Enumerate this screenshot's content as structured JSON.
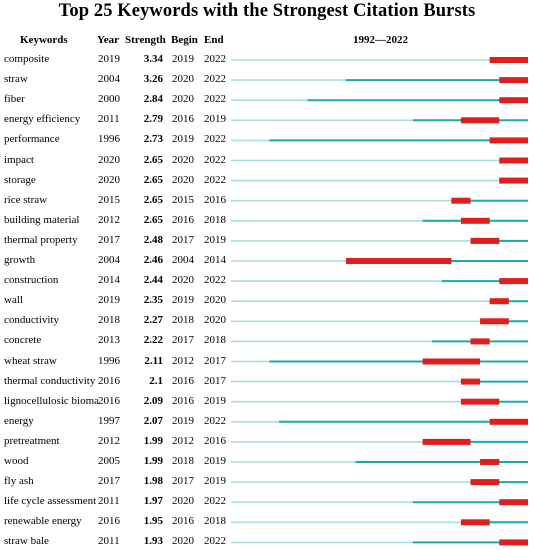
{
  "chart_data": {
    "type": "table",
    "title": "Top 25 Keywords with the Strongest Citation Bursts",
    "columns": [
      "Keywords",
      "Year",
      "Strength",
      "Begin",
      "End",
      "1992—2022"
    ],
    "timeline": {
      "start": 1992,
      "end": 2022
    },
    "colors": {
      "range": "#3dbfbf",
      "active": "#1aabab",
      "burst": "#e01e1e"
    },
    "rows": [
      {
        "keyword": "composite",
        "year": 2019,
        "strength": "3.34",
        "begin": 2019,
        "end": 2022
      },
      {
        "keyword": "straw",
        "year": 2004,
        "strength": "3.26",
        "begin": 2020,
        "end": 2022
      },
      {
        "keyword": "fiber",
        "year": 2000,
        "strength": "2.84",
        "begin": 2020,
        "end": 2022
      },
      {
        "keyword": "energy efficiency",
        "year": 2011,
        "strength": "2.79",
        "begin": 2016,
        "end": 2019
      },
      {
        "keyword": "performance",
        "year": 1996,
        "strength": "2.73",
        "begin": 2019,
        "end": 2022
      },
      {
        "keyword": "impact",
        "year": 2020,
        "strength": "2.65",
        "begin": 2020,
        "end": 2022
      },
      {
        "keyword": "storage",
        "year": 2020,
        "strength": "2.65",
        "begin": 2020,
        "end": 2022
      },
      {
        "keyword": "rice straw",
        "year": 2015,
        "strength": "2.65",
        "begin": 2015,
        "end": 2016
      },
      {
        "keyword": "building material",
        "year": 2012,
        "strength": "2.65",
        "begin": 2016,
        "end": 2018
      },
      {
        "keyword": "thermal property",
        "year": 2017,
        "strength": "2.48",
        "begin": 2017,
        "end": 2019
      },
      {
        "keyword": "growth",
        "year": 2004,
        "strength": "2.46",
        "begin": 2004,
        "end": 2014
      },
      {
        "keyword": "construction",
        "year": 2014,
        "strength": "2.44",
        "begin": 2020,
        "end": 2022
      },
      {
        "keyword": "wall",
        "year": 2019,
        "strength": "2.35",
        "begin": 2019,
        "end": 2020
      },
      {
        "keyword": "conductivity",
        "year": 2018,
        "strength": "2.27",
        "begin": 2018,
        "end": 2020
      },
      {
        "keyword": "concrete",
        "year": 2013,
        "strength": "2.22",
        "begin": 2017,
        "end": 2018
      },
      {
        "keyword": "wheat straw",
        "year": 1996,
        "strength": "2.11",
        "begin": 2012,
        "end": 2017
      },
      {
        "keyword": "thermal conductivity",
        "year": 2016,
        "strength": "2.1",
        "begin": 2016,
        "end": 2017
      },
      {
        "keyword": "lignocellulosic bioma",
        "year": 2016,
        "strength": "2.09",
        "begin": 2016,
        "end": 2019
      },
      {
        "keyword": "energy",
        "year": 1997,
        "strength": "2.07",
        "begin": 2019,
        "end": 2022
      },
      {
        "keyword": "pretreatment",
        "year": 2012,
        "strength": "1.99",
        "begin": 2012,
        "end": 2016
      },
      {
        "keyword": "wood",
        "year": 2005,
        "strength": "1.99",
        "begin": 2018,
        "end": 2019
      },
      {
        "keyword": "fly ash",
        "year": 2017,
        "strength": "1.98",
        "begin": 2017,
        "end": 2019
      },
      {
        "keyword": "life cycle assessment",
        "year": 2011,
        "strength": "1.97",
        "begin": 2020,
        "end": 2022
      },
      {
        "keyword": "renewable energy",
        "year": 2016,
        "strength": "1.95",
        "begin": 2016,
        "end": 2018
      },
      {
        "keyword": "straw bale",
        "year": 2011,
        "strength": "1.93",
        "begin": 2020,
        "end": 2022
      }
    ]
  }
}
